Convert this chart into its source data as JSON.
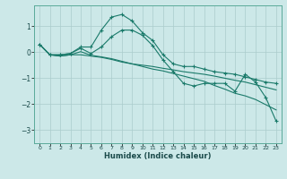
{
  "xlabel": "Humidex (Indice chaleur)",
  "bg_color": "#cce8e8",
  "grid_color": "#aacccc",
  "line_color": "#1a7a6a",
  "xlim": [
    -0.5,
    23.5
  ],
  "ylim": [
    -3.5,
    1.8
  ],
  "yticks": [
    -3,
    -2,
    -1,
    0,
    1
  ],
  "xticks": [
    0,
    1,
    2,
    3,
    4,
    5,
    6,
    7,
    8,
    9,
    10,
    11,
    12,
    13,
    14,
    15,
    16,
    17,
    18,
    19,
    20,
    21,
    22,
    23
  ],
  "line1_x": [
    0,
    1,
    2,
    3,
    4,
    5,
    6,
    7,
    8,
    9,
    10,
    11,
    12,
    13,
    14,
    15,
    16,
    17,
    18,
    19,
    20,
    21,
    22,
    23
  ],
  "line1_y": [
    0.3,
    -0.1,
    -0.1,
    -0.05,
    0.2,
    0.2,
    0.85,
    1.35,
    1.45,
    1.2,
    0.75,
    0.45,
    -0.1,
    -0.45,
    -0.55,
    -0.55,
    -0.65,
    -0.75,
    -0.8,
    -0.85,
    -0.95,
    -1.05,
    -1.15,
    -1.2
  ],
  "line2_x": [
    0,
    1,
    2,
    3,
    4,
    5,
    6,
    7,
    8,
    9,
    10,
    11,
    12,
    13,
    14,
    15,
    16,
    17,
    18,
    19,
    20,
    21,
    22,
    23
  ],
  "line2_y": [
    0.3,
    -0.1,
    -0.1,
    -0.05,
    0.15,
    -0.05,
    0.2,
    0.6,
    0.85,
    0.85,
    0.65,
    0.25,
    -0.3,
    -0.75,
    -1.2,
    -1.3,
    -1.2,
    -1.2,
    -1.2,
    -1.5,
    -0.85,
    -1.15,
    -1.75,
    -2.65
  ],
  "line3_x": [
    0,
    1,
    2,
    3,
    4,
    5,
    6,
    7,
    8,
    9,
    10,
    11,
    12,
    13,
    14,
    15,
    16,
    17,
    18,
    19,
    20,
    21,
    22,
    23
  ],
  "line3_y": [
    0.3,
    -0.1,
    -0.15,
    -0.1,
    -0.1,
    -0.15,
    -0.2,
    -0.28,
    -0.38,
    -0.45,
    -0.5,
    -0.55,
    -0.62,
    -0.68,
    -0.75,
    -0.8,
    -0.85,
    -0.92,
    -1.0,
    -1.08,
    -1.15,
    -1.25,
    -1.35,
    -1.45
  ],
  "line4_x": [
    0,
    1,
    2,
    3,
    4,
    5,
    6,
    7,
    8,
    9,
    10,
    11,
    12,
    13,
    14,
    15,
    16,
    17,
    18,
    19,
    20,
    21,
    22,
    23
  ],
  "line4_y": [
    0.3,
    -0.1,
    -0.15,
    -0.1,
    0.02,
    -0.12,
    -0.18,
    -0.25,
    -0.35,
    -0.45,
    -0.55,
    -0.65,
    -0.72,
    -0.82,
    -0.92,
    -1.02,
    -1.12,
    -1.28,
    -1.42,
    -1.58,
    -1.68,
    -1.82,
    -2.02,
    -2.22
  ]
}
